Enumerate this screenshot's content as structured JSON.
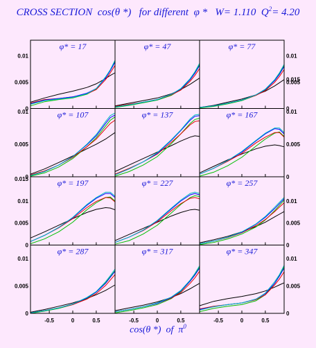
{
  "title": {
    "prefix": "CROSS SECTION  cos(θ *)   for different  φ *   W= 1.110  Q",
    "sup": "2",
    "suffix": "= 4.20"
  },
  "x_axis_label": {
    "text": "cos(θ *)  of  π",
    "sup": "0"
  },
  "colors": {
    "background": "#fde8fd",
    "text_blue": "#1a1ad8",
    "series": [
      "#000000",
      "#00c000",
      "#e00000",
      "#0000ff",
      "#00c0c0"
    ]
  },
  "chart_data": {
    "type": "line",
    "rows": 4,
    "cols": 3,
    "xlim": [
      -0.9,
      0.9
    ],
    "x_ticks": [
      "-0.5",
      "0",
      "0.5"
    ],
    "x_tick_values": [
      -0.5,
      0,
      0.5
    ],
    "row_ylims": [
      [
        0,
        0.013
      ],
      [
        0,
        0.0105
      ],
      [
        0,
        0.0155
      ],
      [
        0,
        0.0125
      ]
    ],
    "row_yticks": [
      {
        "labels": [
          "0",
          "0.005",
          "0.01"
        ],
        "values": [
          0,
          0.005,
          0.01
        ]
      },
      {
        "labels": [
          "0",
          "0.005",
          "0.01"
        ],
        "values": [
          0,
          0.005,
          0.01
        ]
      },
      {
        "labels": [
          "0",
          "0.005",
          "0.01",
          "0.015"
        ],
        "values": [
          0,
          0.005,
          0.01,
          0.015
        ]
      },
      {
        "labels": [
          "0",
          "0.005",
          "0.01"
        ],
        "values": [
          0,
          0.005,
          0.01
        ]
      }
    ],
    "right_yticks": [
      {
        "labels": [
          "0",
          "0.005",
          "0.01"
        ],
        "values": [
          0,
          0.005,
          0.01
        ]
      },
      {
        "labels": [
          "0",
          "0.005",
          "0.01",
          "0.015"
        ],
        "values": [
          0,
          0.005,
          0.01,
          0.015
        ]
      },
      {
        "labels": [
          "0",
          "0.005",
          "0.01"
        ],
        "values": [
          0,
          0.005,
          0.01
        ]
      },
      {
        "labels": [
          "0",
          "0.005",
          "0.01"
        ],
        "values": [
          0,
          0.005,
          0.01
        ]
      }
    ],
    "x": [
      -0.9,
      -0.6,
      -0.3,
      0,
      0.3,
      0.5,
      0.7,
      0.8,
      0.9
    ],
    "panels": [
      {
        "label": "φ* = 17",
        "series": [
          {
            "values": [
              0.0012,
              0.002,
              0.0027,
              0.0033,
              0.004,
              0.0047,
              0.0057,
              0.0063,
              0.0068
            ]
          },
          {
            "values": [
              0.0005,
              0.0013,
              0.0017,
              0.002,
              0.0027,
              0.0037,
              0.006,
              0.0073,
              0.009
            ]
          },
          {
            "values": [
              0.001,
              0.0017,
              0.0019,
              0.0022,
              0.0028,
              0.0036,
              0.0055,
              0.0068,
              0.0082
            ]
          },
          {
            "values": [
              0.0009,
              0.0016,
              0.0019,
              0.0022,
              0.0029,
              0.0038,
              0.0058,
              0.0072,
              0.0088
            ]
          },
          {
            "values": [
              0.0008,
              0.0015,
              0.0018,
              0.0021,
              0.0028,
              0.0038,
              0.006,
              0.0074,
              0.0092
            ]
          }
        ]
      },
      {
        "label": "φ* = 47",
        "series": [
          {
            "values": [
              0.0005,
              0.001,
              0.0015,
              0.002,
              0.0028,
              0.0036,
              0.0046,
              0.0052,
              0.0058
            ]
          },
          {
            "values": [
              0.0002,
              0.0006,
              0.0011,
              0.0016,
              0.0025,
              0.0036,
              0.0055,
              0.0068,
              0.0084
            ]
          },
          {
            "values": [
              0.0004,
              0.0008,
              0.0012,
              0.0017,
              0.0026,
              0.0035,
              0.0052,
              0.0063,
              0.0076
            ]
          },
          {
            "values": [
              0.0003,
              0.0007,
              0.0012,
              0.0017,
              0.0027,
              0.0037,
              0.0055,
              0.0067,
              0.0082
            ]
          },
          {
            "values": [
              0.0003,
              0.0007,
              0.0012,
              0.0017,
              0.0027,
              0.0038,
              0.0057,
              0.007,
              0.0086
            ]
          }
        ]
      },
      {
        "label": "φ* = 77",
        "series": [
          {
            "values": [
              0.0002,
              0.0006,
              0.0012,
              0.0018,
              0.0026,
              0.0033,
              0.0043,
              0.0049,
              0.0055
            ]
          },
          {
            "values": [
              0.0001,
              0.0004,
              0.0009,
              0.0015,
              0.0025,
              0.0035,
              0.0054,
              0.0066,
              0.0082
            ]
          },
          {
            "values": [
              0.0002,
              0.0005,
              0.001,
              0.0016,
              0.0025,
              0.0034,
              0.005,
              0.0061,
              0.0074
            ]
          },
          {
            "values": [
              0.0002,
              0.0005,
              0.001,
              0.0016,
              0.0026,
              0.0036,
              0.0053,
              0.0065,
              0.008
            ]
          },
          {
            "values": [
              0.0002,
              0.0005,
              0.001,
              0.0016,
              0.0026,
              0.0037,
              0.0055,
              0.0068,
              0.0084
            ]
          }
        ]
      },
      {
        "label": "φ* = 107",
        "series": [
          {
            "values": [
              0.0004,
              0.0012,
              0.0022,
              0.0032,
              0.0043,
              0.005,
              0.0058,
              0.0063,
              0.0068
            ]
          },
          {
            "values": [
              0.0001,
              0.0006,
              0.0015,
              0.0028,
              0.0046,
              0.006,
              0.0078,
              0.0087,
              0.0092
            ]
          },
          {
            "values": [
              0.0003,
              0.0009,
              0.0018,
              0.003,
              0.0046,
              0.0058,
              0.0074,
              0.0082,
              0.0087
            ]
          },
          {
            "values": [
              0.0002,
              0.0008,
              0.0018,
              0.0031,
              0.0049,
              0.0063,
              0.0082,
              0.0091,
              0.0095
            ]
          },
          {
            "values": [
              0.0002,
              0.0008,
              0.0018,
              0.0031,
              0.005,
              0.0065,
              0.0085,
              0.0094,
              0.0098
            ]
          }
        ]
      },
      {
        "label": "φ* = 137",
        "series": [
          {
            "values": [
              0.0008,
              0.0018,
              0.0028,
              0.0038,
              0.0048,
              0.0055,
              0.0061,
              0.0063,
              0.0062
            ]
          },
          {
            "values": [
              0.0001,
              0.0008,
              0.0018,
              0.0031,
              0.0051,
              0.0066,
              0.0082,
              0.0088,
              0.009
            ]
          },
          {
            "values": [
              0.0004,
              0.0013,
              0.0023,
              0.0035,
              0.0053,
              0.0066,
              0.008,
              0.0085,
              0.0086
            ]
          },
          {
            "values": [
              0.0003,
              0.0012,
              0.0023,
              0.0036,
              0.0056,
              0.0071,
              0.0087,
              0.0093,
              0.0094
            ]
          },
          {
            "values": [
              0.0003,
              0.0012,
              0.0023,
              0.0037,
              0.0057,
              0.0072,
              0.0089,
              0.0095,
              0.0096
            ]
          }
        ]
      },
      {
        "label": "φ* = 167",
        "series": [
          {
            "values": [
              0.0006,
              0.0016,
              0.0026,
              0.0035,
              0.0043,
              0.0047,
              0.0049,
              0.0048,
              0.0046
            ]
          },
          {
            "values": [
              0.0001,
              0.0007,
              0.0017,
              0.003,
              0.0047,
              0.0058,
              0.0067,
              0.0069,
              0.0062
            ]
          },
          {
            "values": [
              0.0004,
              0.0013,
              0.0024,
              0.0036,
              0.0052,
              0.0061,
              0.0068,
              0.0068,
              0.0061
            ]
          },
          {
            "values": [
              0.0004,
              0.0013,
              0.0025,
              0.0038,
              0.0055,
              0.0066,
              0.0074,
              0.0073,
              0.0066
            ]
          },
          {
            "values": [
              0.0004,
              0.0013,
              0.0025,
              0.0039,
              0.0056,
              0.0067,
              0.0075,
              0.0075,
              0.0068
            ]
          }
        ]
      },
      {
        "label": "φ* = 197",
        "series": [
          {
            "values": [
              0.0016,
              0.003,
              0.0045,
              0.006,
              0.0074,
              0.0081,
              0.0085,
              0.0084,
              0.008
            ]
          },
          {
            "values": [
              0.0003,
              0.0014,
              0.003,
              0.0052,
              0.008,
              0.0096,
              0.0108,
              0.0109,
              0.01
            ]
          },
          {
            "values": [
              0.0008,
              0.0022,
              0.0039,
              0.006,
              0.0085,
              0.0099,
              0.0108,
              0.0107,
              0.0098
            ]
          },
          {
            "values": [
              0.0008,
              0.0022,
              0.004,
              0.0062,
              0.009,
              0.0106,
              0.0117,
              0.0117,
              0.0108
            ]
          },
          {
            "values": [
              0.0008,
              0.0022,
              0.004,
              0.0063,
              0.0092,
              0.0108,
              0.012,
              0.012,
              0.0111
            ]
          }
        ]
      },
      {
        "label": "φ* = 227",
        "series": [
          {
            "values": [
              0.001,
              0.0024,
              0.0038,
              0.0052,
              0.0066,
              0.0074,
              0.008,
              0.0081,
              0.0079
            ]
          },
          {
            "values": [
              0.0002,
              0.001,
              0.0025,
              0.0045,
              0.0073,
              0.0092,
              0.0108,
              0.0112,
              0.011
            ]
          },
          {
            "values": [
              0.0006,
              0.0018,
              0.0033,
              0.0053,
              0.0078,
              0.0094,
              0.0106,
              0.0108,
              0.0105
            ]
          },
          {
            "values": [
              0.0006,
              0.0018,
              0.0034,
              0.0055,
              0.0082,
              0.01,
              0.0114,
              0.0117,
              0.0114
            ]
          },
          {
            "values": [
              0.0006,
              0.0018,
              0.0034,
              0.0056,
              0.0084,
              0.0102,
              0.0117,
              0.012,
              0.0117
            ]
          }
        ]
      },
      {
        "label": "φ* = 257",
        "series": [
          {
            "values": [
              0.0005,
              0.0012,
              0.002,
              0.003,
              0.0042,
              0.0052,
              0.0064,
              0.007,
              0.0076
            ]
          },
          {
            "values": [
              0.0001,
              0.0006,
              0.0014,
              0.0025,
              0.0041,
              0.0057,
              0.0078,
              0.009,
              0.0102
            ]
          },
          {
            "values": [
              0.0003,
              0.0009,
              0.0017,
              0.0028,
              0.0044,
              0.0058,
              0.0076,
              0.0086,
              0.0096
            ]
          },
          {
            "values": [
              0.0003,
              0.0009,
              0.0018,
              0.0029,
              0.0047,
              0.0063,
              0.0083,
              0.0094,
              0.0105
            ]
          },
          {
            "values": [
              0.0003,
              0.0009,
              0.0018,
              0.003,
              0.0048,
              0.0065,
              0.0086,
              0.0097,
              0.0108
            ]
          }
        ]
      },
      {
        "label": "φ* = 287",
        "series": [
          {
            "values": [
              0.0002,
              0.0007,
              0.0013,
              0.0019,
              0.0027,
              0.0034,
              0.0042,
              0.0047,
              0.0052
            ]
          },
          {
            "values": [
              0.0,
              0.0004,
              0.0009,
              0.0016,
              0.0027,
              0.0039,
              0.0056,
              0.0067,
              0.0078
            ]
          },
          {
            "values": [
              0.0001,
              0.0005,
              0.001,
              0.0016,
              0.0026,
              0.0036,
              0.0051,
              0.0061,
              0.0071
            ]
          },
          {
            "values": [
              0.0001,
              0.0005,
              0.001,
              0.0017,
              0.0028,
              0.0039,
              0.0055,
              0.0066,
              0.0077
            ]
          },
          {
            "values": [
              0.0001,
              0.0005,
              0.001,
              0.0017,
              0.0029,
              0.004,
              0.0058,
              0.0069,
              0.0081
            ]
          }
        ]
      },
      {
        "label": "φ* = 317",
        "series": [
          {
            "values": [
              0.0005,
              0.001,
              0.0015,
              0.0021,
              0.0029,
              0.0036,
              0.0045,
              0.005,
              0.0055
            ]
          },
          {
            "values": [
              0.0001,
              0.0005,
              0.001,
              0.0016,
              0.0027,
              0.004,
              0.0059,
              0.0071,
              0.0085
            ]
          },
          {
            "values": [
              0.0003,
              0.0007,
              0.0012,
              0.0018,
              0.0028,
              0.0038,
              0.0055,
              0.0065,
              0.0077
            ]
          },
          {
            "values": [
              0.0003,
              0.0007,
              0.0012,
              0.0018,
              0.0029,
              0.0041,
              0.0059,
              0.007,
              0.0083
            ]
          },
          {
            "values": [
              0.0003,
              0.0007,
              0.0012,
              0.0019,
              0.003,
              0.0042,
              0.0061,
              0.0073,
              0.0087
            ]
          }
        ]
      },
      {
        "label": "φ* = 347",
        "series": [
          {
            "values": [
              0.0014,
              0.0022,
              0.0027,
              0.0031,
              0.0036,
              0.0041,
              0.0048,
              0.0052,
              0.0056
            ]
          },
          {
            "values": [
              0.0003,
              0.0009,
              0.0013,
              0.0016,
              0.0023,
              0.0034,
              0.0055,
              0.0069,
              0.0086
            ]
          },
          {
            "values": [
              0.0008,
              0.0013,
              0.0016,
              0.0019,
              0.0025,
              0.0034,
              0.0052,
              0.0063,
              0.0076
            ]
          },
          {
            "values": [
              0.0007,
              0.0012,
              0.0016,
              0.0019,
              0.0026,
              0.0036,
              0.0055,
              0.0068,
              0.0083
            ]
          },
          {
            "values": [
              0.0006,
              0.0012,
              0.0016,
              0.0019,
              0.0026,
              0.0037,
              0.0058,
              0.0071,
              0.0088
            ]
          }
        ]
      }
    ]
  }
}
